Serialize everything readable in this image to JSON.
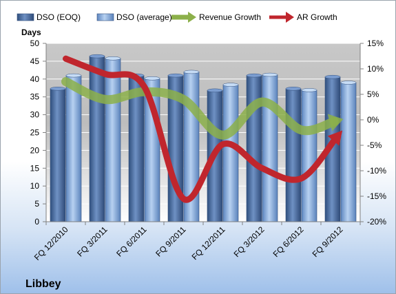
{
  "chart_data": {
    "type": "bar",
    "title": "Libbey",
    "ylabel": "Days",
    "categories": [
      "FQ 12/2010",
      "FQ 3/2011",
      "FQ 6/2011",
      "FQ 9/2011",
      "FQ 12/2011",
      "FQ 3/2012",
      "FQ 6/2012",
      "FQ 9/2012"
    ],
    "ylim": [
      0,
      50
    ],
    "yticks": [
      "0",
      "5",
      "10",
      "15",
      "20",
      "25",
      "30",
      "35",
      "40",
      "45",
      "50"
    ],
    "y2lim": [
      -20,
      15
    ],
    "y2ticks": [
      "-20%",
      "-15%",
      "-10%",
      "-5%",
      "0%",
      "5%",
      "10%",
      "15%"
    ],
    "grid": true,
    "legend_position": "top",
    "series": [
      {
        "name": "DSO (EOQ)",
        "kind": "bar",
        "axis": "left",
        "color": "#4a6fa5",
        "values": [
          37.3,
          46.4,
          41.0,
          41.0,
          36.8,
          41.0,
          37.3,
          40.6
        ]
      },
      {
        "name": "DSO (average)",
        "kind": "bar",
        "axis": "left",
        "color": "#8fb4e3",
        "values": [
          41.0,
          45.8,
          40.2,
          42.0,
          38.4,
          41.2,
          36.9,
          39.0
        ]
      },
      {
        "name": "Revenue Growth",
        "kind": "line",
        "axis": "right",
        "color": "#8cb04a",
        "values": [
          7.5,
          4.0,
          5.5,
          4.0,
          -3.0,
          3.5,
          -2.0,
          0.0
        ]
      },
      {
        "name": "AR Growth",
        "kind": "line",
        "axis": "right",
        "color": "#c0262d",
        "values": [
          12.0,
          9.0,
          6.5,
          -15.5,
          -4.8,
          -9.5,
          -11.5,
          -2.5
        ]
      }
    ]
  }
}
